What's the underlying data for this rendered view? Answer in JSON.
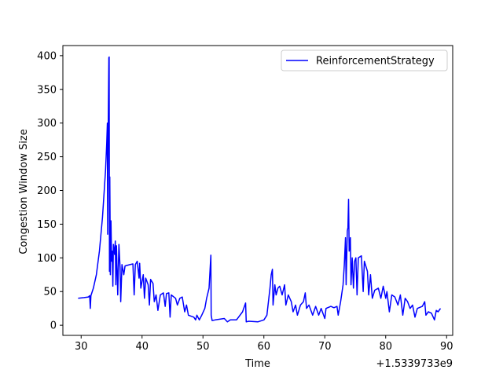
{
  "chart_data": {
    "type": "line",
    "xlabel": "Time",
    "ylabel": "Congestion Window Size",
    "x_offset_label": "+1.5339733e9",
    "xlim": [
      27,
      91
    ],
    "ylim": [
      -15,
      415
    ],
    "xticks": [
      30,
      40,
      50,
      60,
      70,
      80,
      90
    ],
    "yticks": [
      0,
      50,
      100,
      150,
      200,
      250,
      300,
      350,
      400
    ],
    "grid": false,
    "legend_position": "top-right",
    "series": [
      {
        "name": "ReinforcementStrategy",
        "color": "#0000ff",
        "points": [
          [
            29.5,
            40
          ],
          [
            30.5,
            41
          ],
          [
            31.2,
            42
          ],
          [
            31.4,
            44
          ],
          [
            31.5,
            25
          ],
          [
            31.6,
            44
          ],
          [
            32.0,
            55
          ],
          [
            32.5,
            75
          ],
          [
            33.0,
            110
          ],
          [
            33.5,
            160
          ],
          [
            34.0,
            230
          ],
          [
            34.2,
            270
          ],
          [
            34.3,
            300
          ],
          [
            34.35,
            135
          ],
          [
            34.45,
            295
          ],
          [
            34.55,
            397
          ],
          [
            34.6,
            398
          ],
          [
            34.65,
            80
          ],
          [
            34.7,
            220
          ],
          [
            34.75,
            150
          ],
          [
            34.8,
            75
          ],
          [
            34.9,
            155
          ],
          [
            35.0,
            95
          ],
          [
            35.1,
            110
          ],
          [
            35.2,
            58
          ],
          [
            35.3,
            120
          ],
          [
            35.5,
            105
          ],
          [
            35.6,
            125
          ],
          [
            35.7,
            60
          ],
          [
            35.8,
            118
          ],
          [
            36.0,
            45
          ],
          [
            36.2,
            120
          ],
          [
            36.4,
            85
          ],
          [
            36.5,
            35
          ],
          [
            36.7,
            90
          ],
          [
            37.0,
            75
          ],
          [
            37.2,
            88
          ],
          [
            38.0,
            90
          ],
          [
            38.5,
            91
          ],
          [
            38.7,
            45
          ],
          [
            38.9,
            90
          ],
          [
            39.2,
            95
          ],
          [
            39.5,
            70
          ],
          [
            39.6,
            92
          ],
          [
            39.8,
            55
          ],
          [
            40.2,
            75
          ],
          [
            40.4,
            40
          ],
          [
            40.6,
            70
          ],
          [
            41.0,
            60
          ],
          [
            41.2,
            30
          ],
          [
            41.4,
            68
          ],
          [
            41.8,
            62
          ],
          [
            42.0,
            35
          ],
          [
            42.3,
            45
          ],
          [
            42.6,
            22
          ],
          [
            43.0,
            45
          ],
          [
            43.5,
            48
          ],
          [
            43.8,
            28
          ],
          [
            44.0,
            47
          ],
          [
            44.4,
            48
          ],
          [
            44.6,
            12
          ],
          [
            44.8,
            45
          ],
          [
            45.5,
            40
          ],
          [
            45.8,
            30
          ],
          [
            46.2,
            40
          ],
          [
            46.6,
            42
          ],
          [
            47.0,
            20
          ],
          [
            47.3,
            30
          ],
          [
            47.6,
            15
          ],
          [
            48.5,
            12
          ],
          [
            48.8,
            8
          ],
          [
            49.0,
            15
          ],
          [
            49.4,
            8
          ],
          [
            49.8,
            15
          ],
          [
            50.3,
            25
          ],
          [
            50.6,
            40
          ],
          [
            51.0,
            55
          ],
          [
            51.3,
            104
          ],
          [
            51.35,
            15
          ],
          [
            51.5,
            7
          ],
          [
            52.0,
            8
          ],
          [
            53.5,
            10
          ],
          [
            54.0,
            5
          ],
          [
            54.5,
            8
          ],
          [
            55.5,
            8
          ],
          [
            56.5,
            20
          ],
          [
            57.0,
            33
          ],
          [
            57.1,
            5
          ],
          [
            57.5,
            6
          ],
          [
            59.0,
            5
          ],
          [
            60.0,
            8
          ],
          [
            60.5,
            15
          ],
          [
            61.0,
            55
          ],
          [
            61.2,
            75
          ],
          [
            61.4,
            83
          ],
          [
            61.5,
            30
          ],
          [
            61.8,
            60
          ],
          [
            62.0,
            45
          ],
          [
            62.3,
            55
          ],
          [
            62.6,
            58
          ],
          [
            63.0,
            45
          ],
          [
            63.4,
            60
          ],
          [
            63.6,
            30
          ],
          [
            64.0,
            45
          ],
          [
            64.5,
            35
          ],
          [
            64.8,
            20
          ],
          [
            65.2,
            30
          ],
          [
            65.5,
            15
          ],
          [
            66.0,
            30
          ],
          [
            66.5,
            35
          ],
          [
            66.8,
            48
          ],
          [
            67.0,
            25
          ],
          [
            67.4,
            30
          ],
          [
            68.0,
            15
          ],
          [
            68.5,
            28
          ],
          [
            69.0,
            15
          ],
          [
            69.4,
            25
          ],
          [
            70.0,
            10
          ],
          [
            70.2,
            25
          ],
          [
            71.0,
            28
          ],
          [
            71.5,
            26
          ],
          [
            72.0,
            28
          ],
          [
            72.2,
            15
          ],
          [
            72.6,
            35
          ],
          [
            73.0,
            60
          ],
          [
            73.2,
            90
          ],
          [
            73.4,
            130
          ],
          [
            73.5,
            60
          ],
          [
            73.7,
            140
          ],
          [
            73.8,
            145
          ],
          [
            73.9,
            187
          ],
          [
            74.0,
            110
          ],
          [
            74.2,
            130
          ],
          [
            74.3,
            60
          ],
          [
            74.5,
            100
          ],
          [
            74.7,
            55
          ],
          [
            74.9,
            95
          ],
          [
            75.1,
            100
          ],
          [
            75.3,
            45
          ],
          [
            75.5,
            100
          ],
          [
            76.0,
            103
          ],
          [
            76.3,
            50
          ],
          [
            76.5,
            95
          ],
          [
            77.0,
            80
          ],
          [
            77.2,
            45
          ],
          [
            77.5,
            75
          ],
          [
            77.8,
            40
          ],
          [
            78.2,
            52
          ],
          [
            78.8,
            55
          ],
          [
            79.2,
            40
          ],
          [
            79.6,
            58
          ],
          [
            80.0,
            40
          ],
          [
            80.2,
            50
          ],
          [
            80.6,
            20
          ],
          [
            81.0,
            45
          ],
          [
            81.5,
            42
          ],
          [
            82.0,
            30
          ],
          [
            82.4,
            45
          ],
          [
            82.8,
            15
          ],
          [
            83.2,
            40
          ],
          [
            83.6,
            35
          ],
          [
            84.0,
            25
          ],
          [
            84.4,
            30
          ],
          [
            84.8,
            12
          ],
          [
            85.2,
            25
          ],
          [
            86.0,
            28
          ],
          [
            86.4,
            35
          ],
          [
            86.6,
            15
          ],
          [
            87.0,
            20
          ],
          [
            87.5,
            18
          ],
          [
            88.0,
            8
          ],
          [
            88.3,
            22
          ],
          [
            88.6,
            20
          ],
          [
            89.0,
            25
          ]
        ]
      }
    ]
  }
}
